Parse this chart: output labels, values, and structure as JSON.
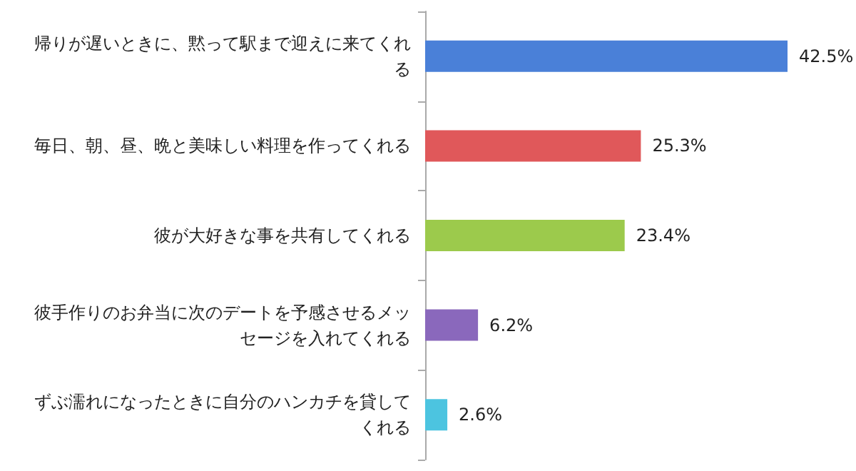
{
  "chart_data": {
    "type": "bar",
    "orientation": "horizontal",
    "categories": [
      "帰りが遅いときに、黙って駅まで迎えに来てくれる",
      "毎日、朝、昼、晩と美味しい料理を作ってくれる",
      "彼が大好きな事を共有してくれる",
      "彼手作りのお弁当に次のデートを予感させるメッセージを入れてくれる",
      "ずぶ濡れになったときに自分のハンカチを貸してくれる"
    ],
    "values": [
      42.5,
      25.3,
      23.4,
      6.2,
      2.6
    ],
    "colors": [
      "#4a80d8",
      "#e0585a",
      "#9cca4c",
      "#8a68bc",
      "#4cc4e0"
    ],
    "value_labels": [
      "42.5%",
      "25.3%",
      "23.4%",
      "6.2%",
      "2.6%"
    ]
  }
}
